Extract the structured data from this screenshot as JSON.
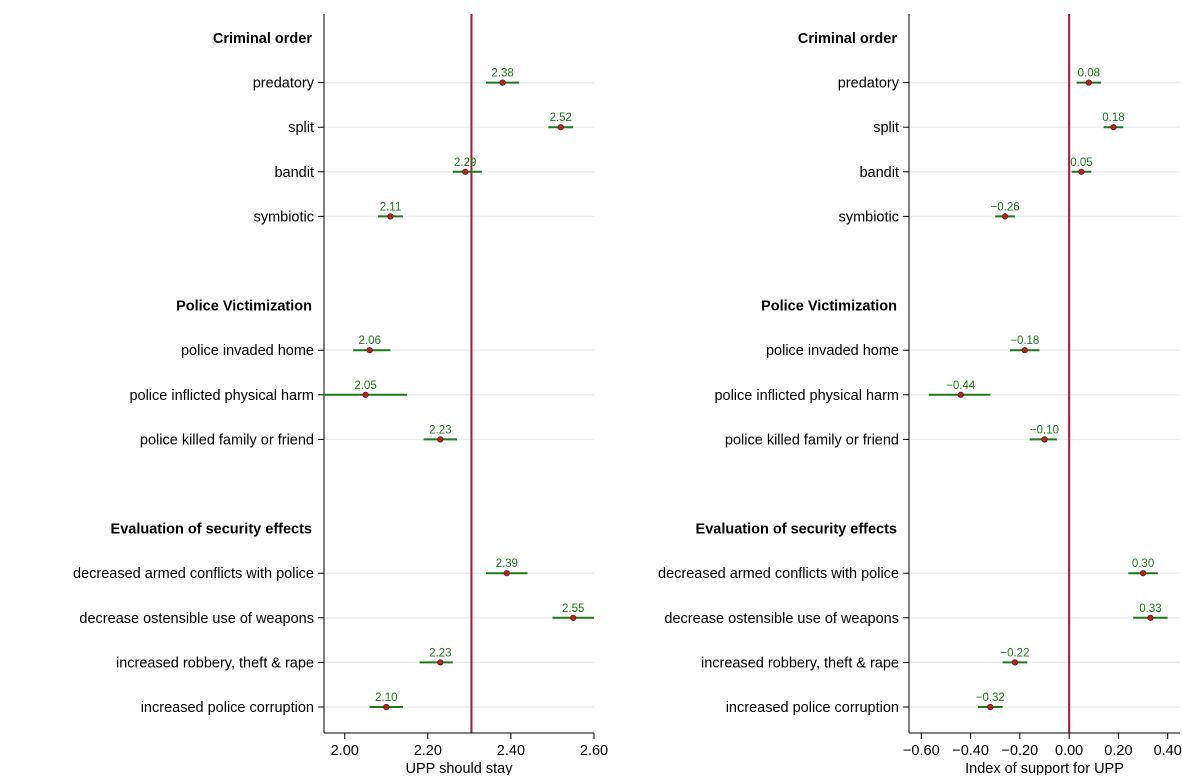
{
  "chart_data": [
    {
      "type": "scatter",
      "subtype": "coefficient-plot",
      "title": "",
      "xlabel": "UPP should stay",
      "ylabel": "",
      "xlim": [
        1.95,
        2.6
      ],
      "x_ticks": [
        2.0,
        2.2,
        2.4,
        2.6
      ],
      "x_tick_labels": [
        "2.00",
        "2.20",
        "2.40",
        "2.60"
      ],
      "reference_line": 2.305,
      "grid": true,
      "groups": [
        {
          "heading": "Criminal order",
          "items": [
            {
              "label": "predatory",
              "value": 2.38,
              "value_label": "2.38",
              "ci": [
                2.34,
                2.42
              ]
            },
            {
              "label": "split",
              "value": 2.52,
              "value_label": "2.52",
              "ci": [
                2.49,
                2.55
              ]
            },
            {
              "label": "bandit",
              "value": 2.29,
              "value_label": "2.29",
              "ci": [
                2.26,
                2.33
              ]
            },
            {
              "label": "symbiotic",
              "value": 2.11,
              "value_label": "2.11",
              "ci": [
                2.08,
                2.14
              ]
            }
          ]
        },
        {
          "heading": "Police Victimization",
          "items": [
            {
              "label": "police invaded home",
              "value": 2.06,
              "value_label": "2.06",
              "ci": [
                2.02,
                2.11
              ]
            },
            {
              "label": "police inflicted physical harm",
              "value": 2.05,
              "value_label": "2.05",
              "ci": [
                1.95,
                2.15
              ]
            },
            {
              "label": "police killed family or friend",
              "value": 2.23,
              "value_label": "2.23",
              "ci": [
                2.19,
                2.27
              ]
            }
          ]
        },
        {
          "heading": "Evaluation of security effects",
          "items": [
            {
              "label": "decreased armed conflicts with police",
              "value": 2.39,
              "value_label": "2.39",
              "ci": [
                2.34,
                2.44
              ]
            },
            {
              "label": "decrease ostensible use of weapons",
              "value": 2.55,
              "value_label": "2.55",
              "ci": [
                2.5,
                2.61
              ]
            },
            {
              "label": "increased robbery, theft & rape",
              "value": 2.23,
              "value_label": "2.23",
              "ci": [
                2.18,
                2.26
              ]
            },
            {
              "label": "increased police corruption",
              "value": 2.1,
              "value_label": "2.10",
              "ci": [
                2.06,
                2.14
              ]
            }
          ]
        }
      ]
    },
    {
      "type": "scatter",
      "subtype": "coefficient-plot",
      "title": "",
      "xlabel": "Index of support for UPP",
      "ylabel": "",
      "xlim": [
        -0.65,
        0.45
      ],
      "x_ticks": [
        -0.6,
        -0.4,
        -0.2,
        0.0,
        0.2,
        0.4
      ],
      "x_tick_labels": [
        "−0.60",
        "−0.40",
        "−0.20",
        "0.00",
        "0.20",
        "0.40"
      ],
      "reference_line": 0.0,
      "grid": true,
      "groups": [
        {
          "heading": "Criminal order",
          "items": [
            {
              "label": "predatory",
              "value": 0.08,
              "value_label": "0.08",
              "ci": [
                0.03,
                0.13
              ]
            },
            {
              "label": "split",
              "value": 0.18,
              "value_label": "0.18",
              "ci": [
                0.14,
                0.22
              ]
            },
            {
              "label": "bandit",
              "value": 0.05,
              "value_label": "0.05",
              "ci": [
                0.01,
                0.09
              ]
            },
            {
              "label": "symbiotic",
              "value": -0.26,
              "value_label": "−0.26",
              "ci": [
                -0.3,
                -0.22
              ]
            }
          ]
        },
        {
          "heading": "Police Victimization",
          "items": [
            {
              "label": "police invaded home",
              "value": -0.18,
              "value_label": "−0.18",
              "ci": [
                -0.24,
                -0.12
              ]
            },
            {
              "label": "police inflicted physical harm",
              "value": -0.44,
              "value_label": "−0.44",
              "ci": [
                -0.57,
                -0.32
              ]
            },
            {
              "label": "police killed family or friend",
              "value": -0.1,
              "value_label": "−0.10",
              "ci": [
                -0.16,
                -0.05
              ]
            }
          ]
        },
        {
          "heading": "Evaluation of security effects",
          "items": [
            {
              "label": "decreased armed conflicts with police",
              "value": 0.3,
              "value_label": "0.30",
              "ci": [
                0.24,
                0.36
              ]
            },
            {
              "label": "decrease ostensible use of weapons",
              "value": 0.33,
              "value_label": "0.33",
              "ci": [
                0.26,
                0.4
              ]
            },
            {
              "label": "increased robbery, theft & rape",
              "value": -0.22,
              "value_label": "−0.22",
              "ci": [
                -0.27,
                -0.17
              ]
            },
            {
              "label": "increased police corruption",
              "value": -0.32,
              "value_label": "−0.32",
              "ci": [
                -0.37,
                -0.27
              ]
            }
          ]
        }
      ]
    }
  ],
  "colors": {
    "ci_line": "#1a7a1a",
    "point": "#b22222",
    "point_stroke": "#5a0f0f",
    "value_label": "#1a7a1a",
    "reference_line": "#b0123c",
    "grid": "#ebedf0",
    "axis": "#000000",
    "text": "#000000"
  }
}
